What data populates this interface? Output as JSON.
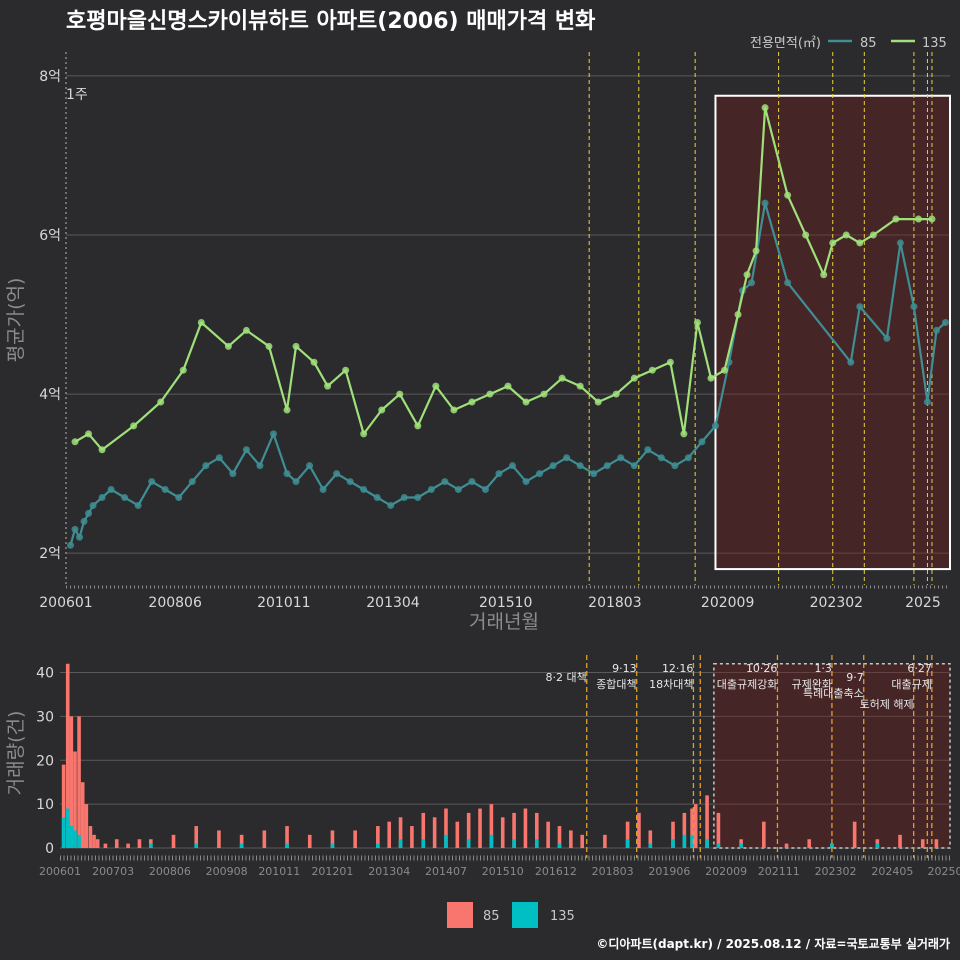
{
  "title": "호평마을신명스카이뷰하트 아파트(2006) 매매가격 변화",
  "top_legend": {
    "title": "전용면적(㎡)",
    "items": [
      {
        "label": "85",
        "color": "#3e8e93"
      },
      {
        "label": "135",
        "color": "#9fe07a"
      }
    ]
  },
  "bottom_legend": {
    "items": [
      {
        "label": "85",
        "color": "#f8766d"
      },
      {
        "label": "135",
        "color": "#00bfc4"
      }
    ]
  },
  "credit": "©디아파트(dapt.kr) / 2025.08.12 / 자료=국토교통부 실거래가",
  "chart_data": [
    {
      "type": "line",
      "title": "호평마을신명스카이뷰하트 아파트(2006) 매매가격 변화",
      "xlabel": "거래년월",
      "ylabel": "평균가(억)",
      "ylim": [
        1.6,
        8.3
      ],
      "xlim": [
        2006.0,
        2025.6
      ],
      "y_ticks": [
        {
          "value": 2,
          "label": "2억"
        },
        {
          "value": 4,
          "label": "4억"
        },
        {
          "value": 6,
          "label": "6억"
        },
        {
          "value": 8,
          "label": "8억"
        }
      ],
      "x_ticks": [
        {
          "value": 2006.0,
          "label": "200601"
        },
        {
          "value": 2008.42,
          "label": "200806"
        },
        {
          "value": 2010.83,
          "label": "201011"
        },
        {
          "value": 2013.25,
          "label": "201304"
        },
        {
          "value": 2015.75,
          "label": "201510"
        },
        {
          "value": 2018.17,
          "label": "201803"
        },
        {
          "value": 2020.67,
          "label": "202009"
        },
        {
          "value": 2023.08,
          "label": "202302"
        },
        {
          "value": 2025.0,
          "label": "2025"
        }
      ],
      "annotation": "1주",
      "policy_lines": [
        2017.6,
        2018.7,
        2019.95,
        2021.8,
        2023.0,
        2023.7,
        2024.8,
        2025.1,
        2025.2
      ],
      "highlight_box": {
        "x_start": 2020.4,
        "x_end": 2025.6,
        "y_start": 1.8,
        "y_end": 7.75
      },
      "series": [
        {
          "name": "85",
          "color": "#3e8e93",
          "x": [
            2006.1,
            2006.2,
            2006.3,
            2006.4,
            2006.5,
            2006.6,
            2006.8,
            2007.0,
            2007.3,
            2007.6,
            2007.9,
            2008.2,
            2008.5,
            2008.8,
            2009.1,
            2009.4,
            2009.7,
            2010.0,
            2010.3,
            2010.6,
            2010.9,
            2011.1,
            2011.4,
            2011.7,
            2012.0,
            2012.3,
            2012.6,
            2012.9,
            2013.2,
            2013.5,
            2013.8,
            2014.1,
            2014.4,
            2014.7,
            2015.0,
            2015.3,
            2015.6,
            2015.9,
            2016.2,
            2016.5,
            2016.8,
            2017.1,
            2017.4,
            2017.7,
            2018.0,
            2018.3,
            2018.6,
            2018.9,
            2019.2,
            2019.5,
            2019.8,
            2020.1,
            2020.4,
            2020.7,
            2021.0,
            2021.2,
            2021.5,
            2022.0,
            2023.4,
            2023.6,
            2024.2,
            2024.5,
            2024.8,
            2025.1,
            2025.3,
            2025.5
          ],
          "values": [
            2.1,
            2.3,
            2.2,
            2.4,
            2.5,
            2.6,
            2.7,
            2.8,
            2.7,
            2.6,
            2.9,
            2.8,
            2.7,
            2.9,
            3.1,
            3.2,
            3.0,
            3.3,
            3.1,
            3.5,
            3.0,
            2.9,
            3.1,
            2.8,
            3.0,
            2.9,
            2.8,
            2.7,
            2.6,
            2.7,
            2.7,
            2.8,
            2.9,
            2.8,
            2.9,
            2.8,
            3.0,
            3.1,
            2.9,
            3.0,
            3.1,
            3.2,
            3.1,
            3.0,
            3.1,
            3.2,
            3.1,
            3.3,
            3.2,
            3.1,
            3.2,
            3.4,
            3.6,
            4.4,
            5.3,
            5.4,
            6.4,
            5.4,
            4.4,
            5.1,
            4.7,
            5.9,
            5.1,
            3.9,
            4.8,
            4.9
          ]
        },
        {
          "name": "135",
          "color": "#9fe07a",
          "x": [
            2006.2,
            2006.5,
            2006.8,
            2007.5,
            2008.1,
            2008.6,
            2009.0,
            2009.6,
            2010.0,
            2010.5,
            2010.9,
            2011.1,
            2011.5,
            2011.8,
            2012.2,
            2012.6,
            2013.0,
            2013.4,
            2013.8,
            2014.2,
            2014.6,
            2015.0,
            2015.4,
            2015.8,
            2016.2,
            2016.6,
            2017.0,
            2017.4,
            2017.8,
            2018.2,
            2018.6,
            2019.0,
            2019.4,
            2019.7,
            2020.0,
            2020.3,
            2020.6,
            2020.9,
            2021.1,
            2021.3,
            2021.5,
            2022.0,
            2022.4,
            2022.8,
            2023.0,
            2023.3,
            2023.6,
            2023.9,
            2024.4,
            2024.9,
            2025.2
          ],
          "values": [
            3.4,
            3.5,
            3.3,
            3.6,
            3.9,
            4.3,
            4.9,
            4.6,
            4.8,
            4.6,
            3.8,
            4.6,
            4.4,
            4.1,
            4.3,
            3.5,
            3.8,
            4.0,
            3.6,
            4.1,
            3.8,
            3.9,
            4.0,
            4.1,
            3.9,
            4.0,
            4.2,
            4.1,
            3.9,
            4.0,
            4.2,
            4.3,
            4.4,
            3.5,
            4.9,
            4.2,
            4.3,
            5.0,
            5.5,
            5.8,
            7.6,
            6.5,
            6.0,
            5.5,
            5.9,
            6.0,
            5.9,
            6.0,
            6.2,
            6.2,
            6.2
          ]
        }
      ]
    },
    {
      "type": "bar",
      "title": "",
      "xlabel": "",
      "ylabel": "거래량(건)",
      "ylim": [
        0,
        44
      ],
      "xlim": [
        2006.0,
        2025.6
      ],
      "y_ticks": [
        0,
        10,
        20,
        30,
        40
      ],
      "x_ticks": [
        {
          "value": 2006.0,
          "label": "200601"
        },
        {
          "value": 2007.17,
          "label": "200703"
        },
        {
          "value": 2008.42,
          "label": "200806"
        },
        {
          "value": 2009.67,
          "label": "200908"
        },
        {
          "value": 2010.83,
          "label": "201011"
        },
        {
          "value": 2012.0,
          "label": "201201"
        },
        {
          "value": 2013.25,
          "label": "201304"
        },
        {
          "value": 2014.5,
          "label": "201407"
        },
        {
          "value": 2015.75,
          "label": "201510"
        },
        {
          "value": 2016.92,
          "label": "201612"
        },
        {
          "value": 2018.17,
          "label": "201803"
        },
        {
          "value": 2019.42,
          "label": "201906"
        },
        {
          "value": 2020.67,
          "label": "202009"
        },
        {
          "value": 2021.83,
          "label": "202111"
        },
        {
          "value": 2023.08,
          "label": "202302"
        },
        {
          "value": 2024.33,
          "label": "202405"
        },
        {
          "value": 2025.5,
          "label": "20250"
        }
      ],
      "highlight_box": {
        "x_start": 2020.4,
        "x_end": 2025.6,
        "y_start": 0,
        "y_end": 42
      },
      "policy_lines": [
        2017.6,
        2018.7,
        2019.95,
        2020.1,
        2021.8,
        2023.0,
        2023.7,
        2024.8,
        2025.1,
        2025.2
      ],
      "policy_labels": [
        {
          "x": 2017.6,
          "row": 1,
          "lines": [
            "8·2 대책"
          ]
        },
        {
          "x": 2018.7,
          "row": 0,
          "lines": [
            "9·13",
            "종합대책"
          ]
        },
        {
          "x": 2019.95,
          "row": 0,
          "lines": [
            "12·16",
            "18차대책"
          ]
        },
        {
          "x": 2021.8,
          "row": 0,
          "lines": [
            "10·26",
            "대출규제강화"
          ]
        },
        {
          "x": 2023.0,
          "row": 0,
          "lines": [
            "1·3",
            "규제완화"
          ]
        },
        {
          "x": 2023.7,
          "row": 1,
          "lines": [
            "9·7",
            "특례대출축소"
          ]
        },
        {
          "x": 2024.8,
          "row": 2,
          "lines": [
            "토허제 해제"
          ]
        },
        {
          "x": 2025.2,
          "row": 0,
          "lines": [
            "6·27",
            "대출규제"
          ]
        }
      ],
      "series": [
        {
          "name": "85",
          "color": "#f8766d",
          "x": [
            2006.08,
            2006.17,
            2006.25,
            2006.33,
            2006.42,
            2006.5,
            2006.58,
            2006.67,
            2006.75,
            2006.83,
            2007.0,
            2007.25,
            2007.5,
            2007.75,
            2008.0,
            2008.5,
            2009.0,
            2009.5,
            2010.0,
            2010.5,
            2011.0,
            2011.5,
            2012.0,
            2012.5,
            2013.0,
            2013.25,
            2013.5,
            2013.75,
            2014.0,
            2014.25,
            2014.5,
            2014.75,
            2015.0,
            2015.25,
            2015.5,
            2015.75,
            2016.0,
            2016.25,
            2016.5,
            2016.75,
            2017.0,
            2017.25,
            2017.5,
            2018.0,
            2018.5,
            2018.75,
            2019.0,
            2019.5,
            2019.75,
            2019.92,
            2020.0,
            2020.25,
            2020.5,
            2021.0,
            2021.5,
            2022.0,
            2022.5,
            2023.0,
            2023.5,
            2024.0,
            2024.5,
            2025.0,
            2025.3
          ],
          "values": [
            19,
            42,
            30,
            22,
            30,
            15,
            10,
            5,
            3,
            2,
            1,
            2,
            1,
            2,
            2,
            3,
            5,
            4,
            3,
            4,
            5,
            3,
            4,
            4,
            5,
            6,
            7,
            5,
            8,
            7,
            9,
            6,
            8,
            9,
            10,
            7,
            8,
            9,
            8,
            6,
            5,
            4,
            3,
            3,
            6,
            8,
            4,
            6,
            8,
            9,
            10,
            12,
            8,
            2,
            6,
            1,
            2,
            1,
            6,
            2,
            3,
            2,
            2
          ]
        },
        {
          "name": "135",
          "color": "#00bfc4",
          "x": [
            2006.08,
            2006.17,
            2006.25,
            2006.33,
            2006.42,
            2007.0,
            2008.0,
            2009.0,
            2010.0,
            2011.0,
            2012.0,
            2013.0,
            2013.5,
            2014.0,
            2014.5,
            2015.0,
            2015.5,
            2016.0,
            2016.5,
            2017.0,
            2018.5,
            2019.0,
            2019.5,
            2019.75,
            2019.92,
            2020.25,
            2020.5,
            2021.0,
            2022.0,
            2023.0,
            2024.0,
            2025.0
          ],
          "values": [
            7,
            9,
            5,
            4,
            3,
            0,
            1,
            1,
            1,
            1,
            1,
            1,
            2,
            2,
            3,
            2,
            3,
            2,
            2,
            1,
            2,
            1,
            2,
            3,
            3,
            2,
            1,
            1,
            0,
            1,
            1,
            0
          ]
        }
      ]
    }
  ]
}
